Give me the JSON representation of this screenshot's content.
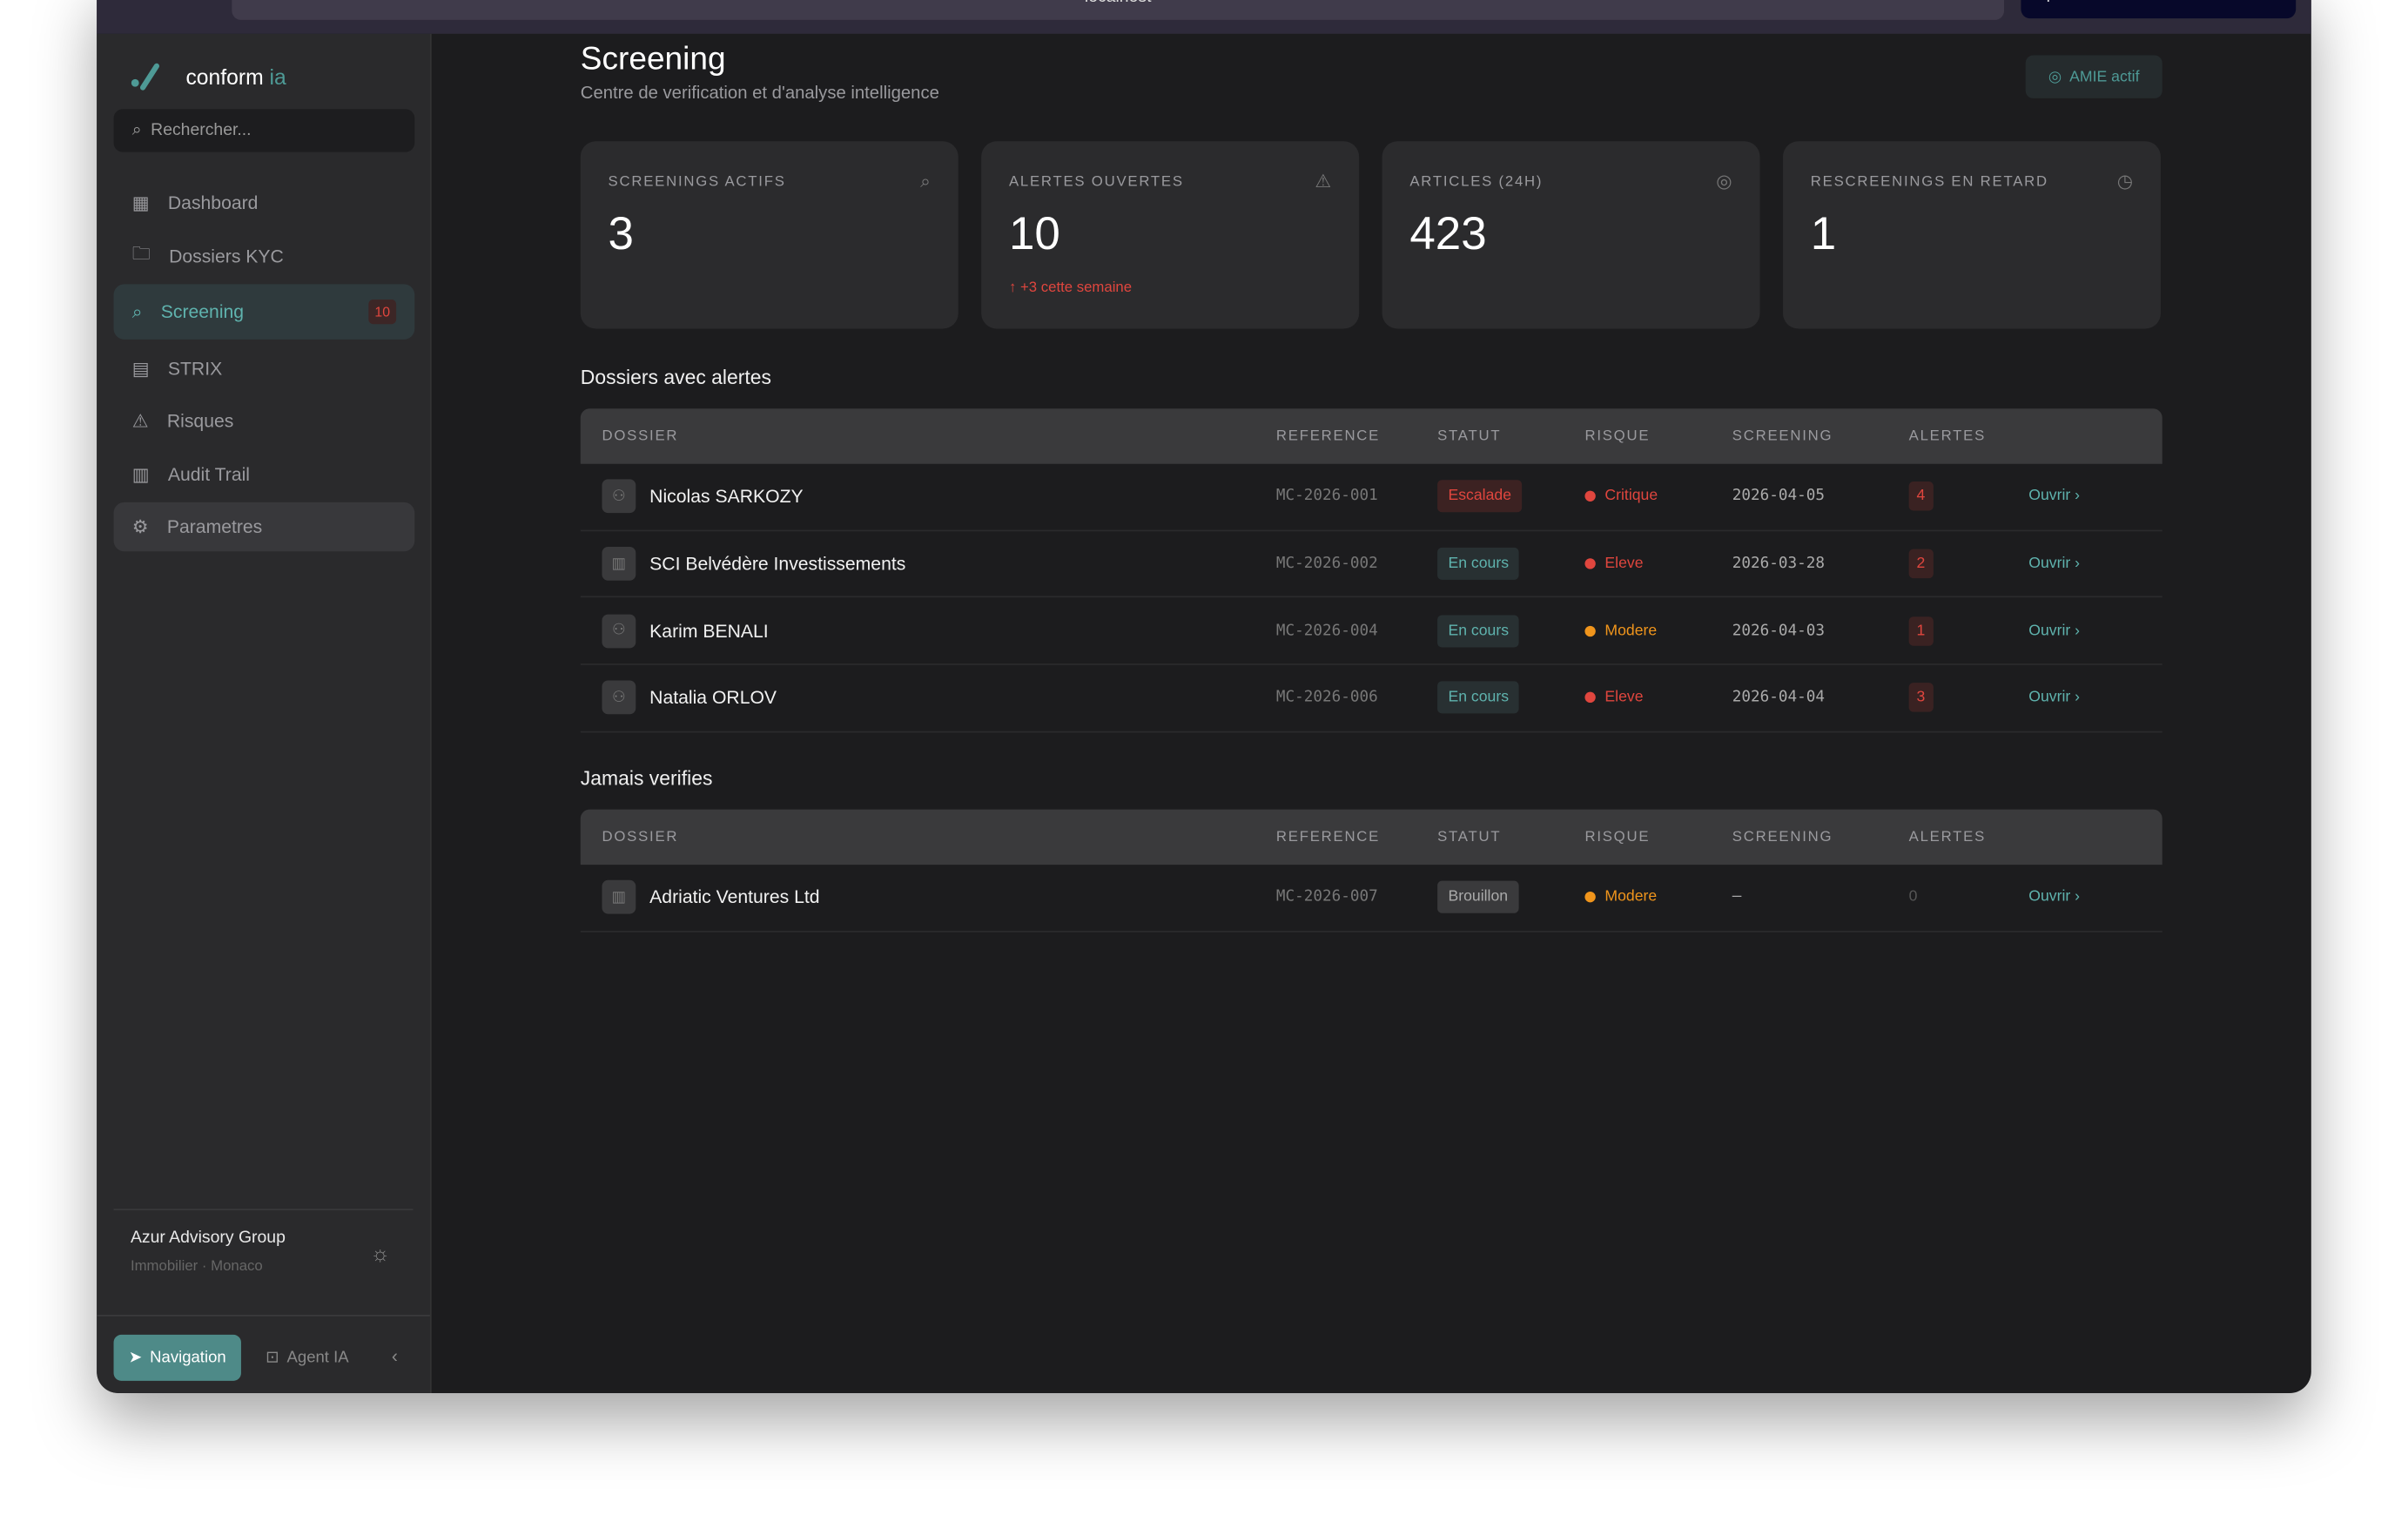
{
  "browser": {
    "url": "localhost",
    "open_label": "Open in ..."
  },
  "brand": {
    "name": "conform",
    "suffix": "ia"
  },
  "search": {
    "placeholder": "Rechercher..."
  },
  "sidebar": {
    "items": [
      {
        "label": "Dashboard",
        "icon": "grid-icon"
      },
      {
        "label": "Dossiers KYC",
        "icon": "folder-icon"
      },
      {
        "label": "Screening",
        "icon": "search-icon",
        "badge": "10",
        "active": true
      },
      {
        "label": "STRIX",
        "icon": "document-icon"
      },
      {
        "label": "Risques",
        "icon": "warning-icon"
      },
      {
        "label": "Audit Trail",
        "icon": "clipboard-icon"
      },
      {
        "label": "Parametres",
        "icon": "gear-icon"
      }
    ]
  },
  "org": {
    "name": "Azur Advisory Group",
    "sub": "Immobilier · Monaco"
  },
  "footer": {
    "navigation": "Navigation",
    "agent": "Agent IA"
  },
  "header": {
    "title": "Screening",
    "subtitle": "Centre de verification et d'analyse intelligence",
    "amie": "AMIE actif"
  },
  "stats": [
    {
      "label": "SCREENINGS ACTIFS",
      "value": "3",
      "icon": "search-icon"
    },
    {
      "label": "ALERTES OUVERTES",
      "value": "10",
      "delta": "↑ +3 cette semaine",
      "icon": "warning-icon"
    },
    {
      "label": "ARTICLES (24H)",
      "value": "423",
      "icon": "brain-icon"
    },
    {
      "label": "RESCREENINGS EN RETARD",
      "value": "1",
      "icon": "clock-icon"
    }
  ],
  "columns": [
    "DOSSIER",
    "REFERENCE",
    "STATUT",
    "RISQUE",
    "SCREENING",
    "ALERTES"
  ],
  "colors": {
    "accent": "#4e9a96",
    "danger": "#e0463e",
    "warning": "#f0951c"
  },
  "alerts_section": {
    "title": "Dossiers avec alertes",
    "rows": [
      {
        "name": "Nicolas SARKOZY",
        "type": "person",
        "ref": "MC-2026-001",
        "status": "Escalade",
        "status_kind": "esc",
        "risk": "Critique",
        "risk_color": "#e0463e",
        "date": "2026-04-05",
        "alerts": "4",
        "action": "Ouvrir ›"
      },
      {
        "name": "SCI Belvédère Investissements",
        "type": "company",
        "ref": "MC-2026-002",
        "status": "En cours",
        "status_kind": "enc",
        "risk": "Eleve",
        "risk_color": "#e0463e",
        "date": "2026-03-28",
        "alerts": "2",
        "action": "Ouvrir ›"
      },
      {
        "name": "Karim BENALI",
        "type": "person",
        "ref": "MC-2026-004",
        "status": "En cours",
        "status_kind": "enc",
        "risk": "Modere",
        "risk_color": "#f0951c",
        "date": "2026-04-03",
        "alerts": "1",
        "action": "Ouvrir ›"
      },
      {
        "name": "Natalia ORLOV",
        "type": "person",
        "ref": "MC-2026-006",
        "status": "En cours",
        "status_kind": "enc",
        "risk": "Eleve",
        "risk_color": "#e0463e",
        "date": "2026-04-04",
        "alerts": "3",
        "action": "Ouvrir ›"
      }
    ]
  },
  "never_section": {
    "title": "Jamais verifies",
    "rows": [
      {
        "name": "Adriatic Ventures Ltd",
        "type": "company",
        "ref": "MC-2026-007",
        "status": "Brouillon",
        "status_kind": "br",
        "risk": "Modere",
        "risk_color": "#f0951c",
        "date": "–",
        "alerts": "0",
        "action": "Ouvrir ›"
      }
    ]
  }
}
